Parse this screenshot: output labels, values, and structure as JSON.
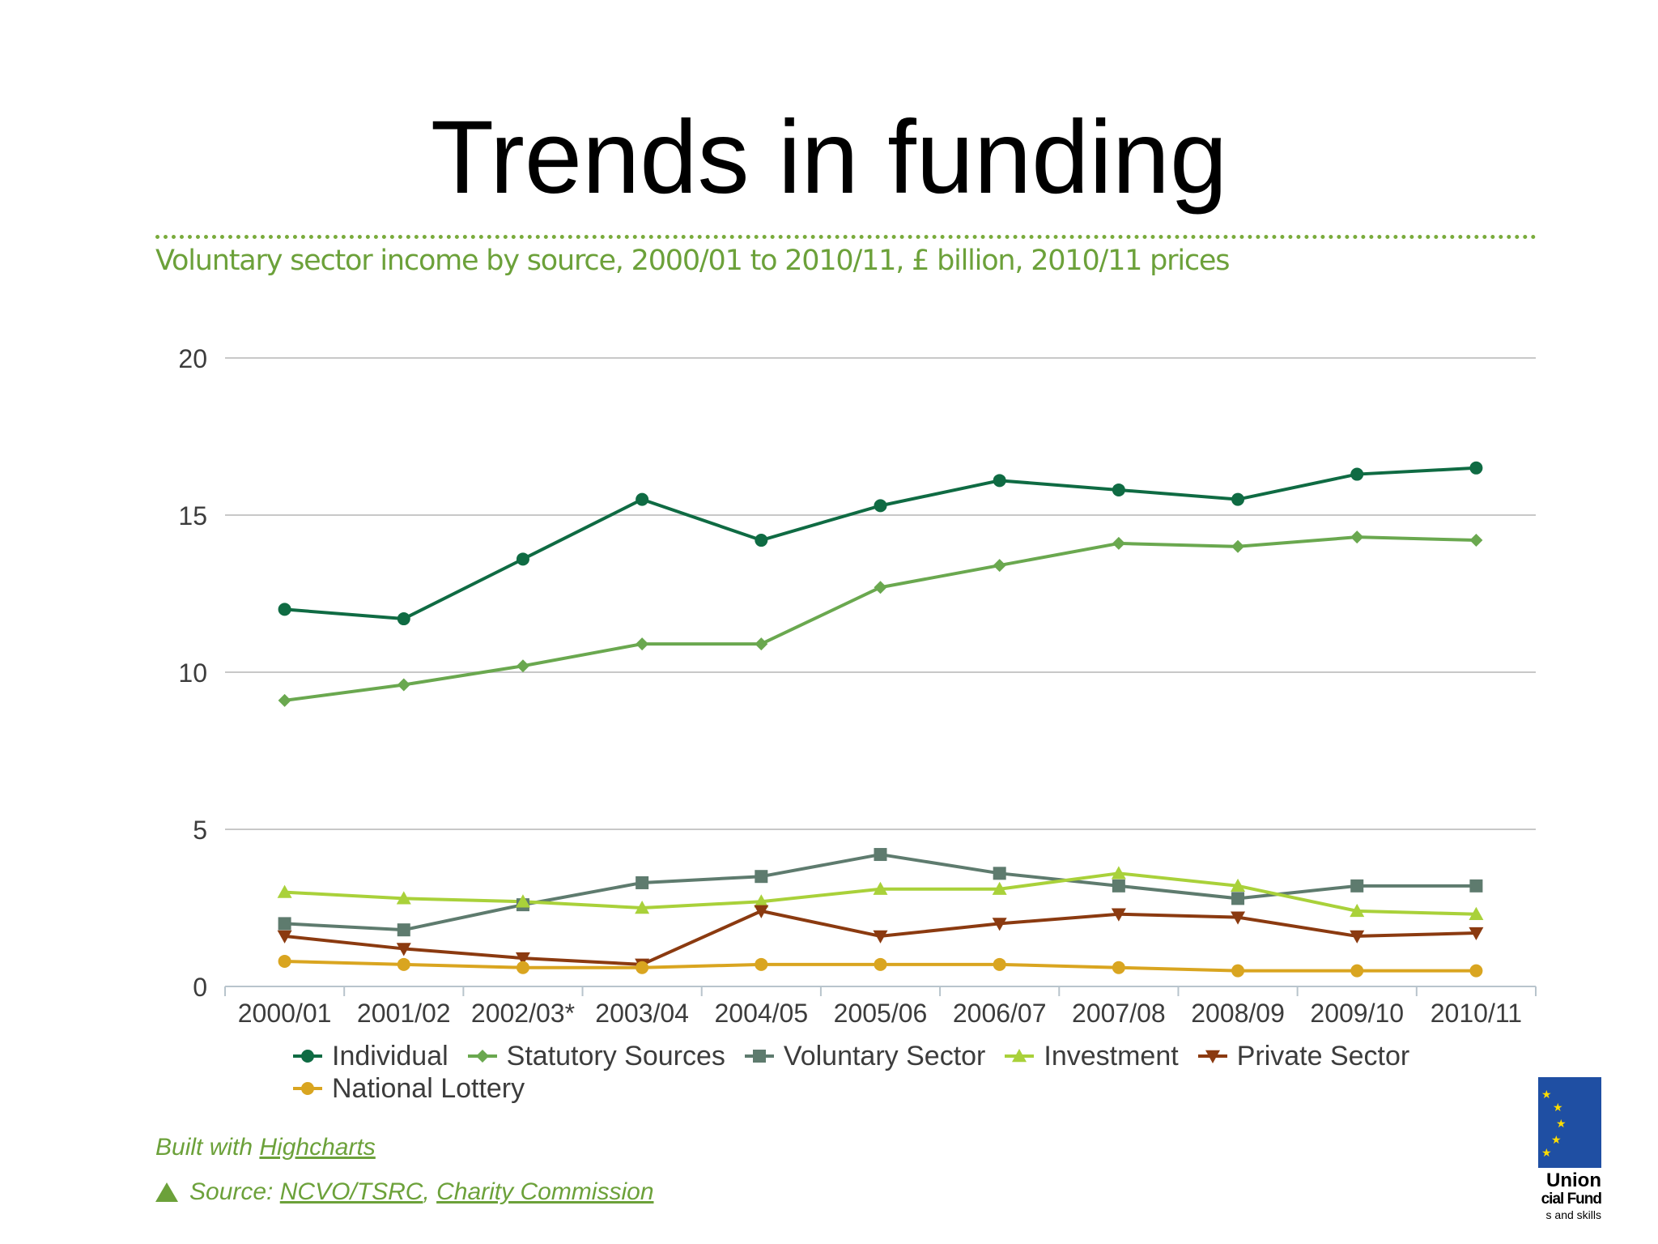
{
  "slide": {
    "title": "Trends in funding"
  },
  "footer": {
    "credit_prefix": "Built with ",
    "credit_link": "Highcharts",
    "source_prefix": "Source: ",
    "source_link_1": "NCVO/TSRC",
    "source_sep": ", ",
    "source_link_2": "Charity Commission"
  },
  "logo": {
    "line1": "Union",
    "line2": "cial Fund",
    "line3": "s and skills",
    "flag_color": "#1f4fa3",
    "star_color": "#ffdd00"
  },
  "chart_data": {
    "type": "line",
    "title": "Voluntary sector income by source, 2000/01 to 2010/11, £ billion, 2010/11 prices",
    "xlabel": "",
    "ylabel": "",
    "ylim": [
      0,
      20
    ],
    "yticks": [
      0,
      5,
      10,
      15,
      20
    ],
    "grid": true,
    "legend_position": "bottom",
    "categories": [
      "2000/01",
      "2001/02",
      "2002/03*",
      "2003/04",
      "2004/05",
      "2005/06",
      "2006/07",
      "2007/08",
      "2008/09",
      "2009/10",
      "2010/11"
    ],
    "series": [
      {
        "name": "Individual",
        "color": "#0f6b43",
        "marker": "circle",
        "values": [
          12.0,
          11.7,
          13.6,
          15.5,
          14.2,
          15.3,
          16.1,
          15.8,
          15.5,
          16.3,
          16.5
        ]
      },
      {
        "name": "Statutory Sources",
        "color": "#6aa84f",
        "marker": "diamond",
        "values": [
          9.1,
          9.6,
          10.2,
          10.9,
          10.9,
          12.7,
          13.4,
          14.1,
          14.0,
          14.3,
          14.2
        ]
      },
      {
        "name": "Voluntary Sector",
        "color": "#5e7b6e",
        "marker": "square",
        "values": [
          2.0,
          1.8,
          2.6,
          3.3,
          3.5,
          4.2,
          3.6,
          3.2,
          2.8,
          3.2,
          3.2
        ]
      },
      {
        "name": "Investment",
        "color": "#a9d13a",
        "marker": "triangle",
        "values": [
          3.0,
          2.8,
          2.7,
          2.5,
          2.7,
          3.1,
          3.1,
          3.6,
          3.2,
          2.4,
          2.3
        ]
      },
      {
        "name": "Private Sector",
        "color": "#8b3a10",
        "marker": "triangle-down",
        "values": [
          1.6,
          1.2,
          0.9,
          0.7,
          2.4,
          1.6,
          2.0,
          2.3,
          2.2,
          1.6,
          1.7
        ]
      },
      {
        "name": "National Lottery",
        "color": "#d9a520",
        "marker": "circle",
        "values": [
          0.8,
          0.7,
          0.6,
          0.6,
          0.7,
          0.7,
          0.7,
          0.6,
          0.5,
          0.5,
          0.5
        ]
      }
    ]
  }
}
